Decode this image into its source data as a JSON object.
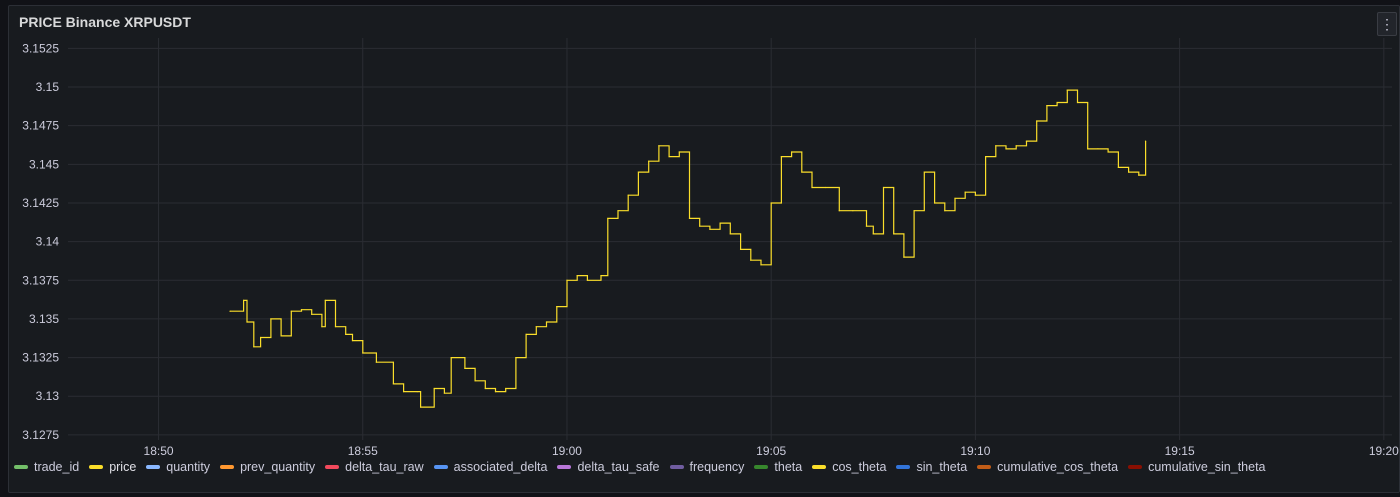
{
  "panel": {
    "title": "PRICE Binance XRPUSDT",
    "menu_icon": "kebab-menu-icon",
    "menu_glyph": "⋮"
  },
  "chart_data": {
    "type": "line",
    "title": "PRICE Binance XRPUSDT",
    "xlabel": "",
    "ylabel": "",
    "y_ticks": [
      "3.1525",
      "3.15",
      "3.1475",
      "3.145",
      "3.1425",
      "3.14",
      "3.1375",
      "3.135",
      "3.1325",
      "3.13",
      "3.1275"
    ],
    "x_ticks": [
      "18:50",
      "18:55",
      "19:00",
      "19:05",
      "19:10",
      "19:15",
      "19:20"
    ],
    "ylim": [
      3.12717,
      3.15317
    ],
    "xlim": [
      "18:47:47",
      "19:20:12"
    ],
    "grid": true,
    "legend_position": "bottom-left",
    "line_color": "#fade2a",
    "series": [
      {
        "name": "price",
        "x": [
          "18:51:45",
          "18:52:05",
          "18:52:10",
          "18:52:20",
          "18:52:30",
          "18:52:45",
          "18:53:00",
          "18:53:15",
          "18:53:30",
          "18:53:45",
          "18:54:00",
          "18:54:05",
          "18:54:20",
          "18:54:35",
          "18:54:45",
          "18:55:00",
          "18:55:20",
          "18:55:45",
          "18:56:00",
          "18:56:20",
          "18:56:25",
          "18:56:45",
          "18:57:00",
          "18:57:10",
          "18:57:30",
          "18:57:45",
          "18:58:00",
          "18:58:15",
          "18:58:30",
          "18:58:45",
          "18:59:00",
          "18:59:15",
          "18:59:30",
          "18:59:45",
          "19:00:00",
          "19:00:15",
          "19:00:30",
          "19:00:50",
          "19:01:00",
          "19:01:15",
          "19:01:30",
          "19:01:45",
          "19:02:00",
          "19:02:15",
          "19:02:30",
          "19:02:45",
          "19:03:00",
          "19:03:15",
          "19:03:30",
          "19:03:45",
          "19:04:00",
          "19:04:15",
          "19:04:30",
          "19:04:45",
          "19:05:00",
          "19:05:15",
          "19:05:30",
          "19:05:45",
          "19:06:00",
          "19:06:20",
          "19:06:40",
          "19:07:00",
          "19:07:20",
          "19:07:30",
          "19:07:45",
          "19:08:00",
          "19:08:15",
          "19:08:30",
          "19:08:45",
          "19:09:00",
          "19:09:15",
          "19:09:30",
          "19:09:45",
          "19:10:00",
          "19:10:15",
          "19:10:30",
          "19:10:45",
          "19:11:00",
          "19:11:15",
          "19:11:30",
          "19:11:45",
          "19:12:00",
          "19:12:15",
          "19:12:30",
          "19:12:45",
          "19:13:00",
          "19:13:15",
          "19:13:30",
          "19:13:45",
          "19:14:00",
          "19:14:10"
        ],
        "values": [
          3.1355,
          3.1362,
          3.1348,
          3.1332,
          3.1338,
          3.135,
          3.1339,
          3.1355,
          3.1356,
          3.1353,
          3.1345,
          3.1362,
          3.1345,
          3.134,
          3.1336,
          3.1328,
          3.1322,
          3.1308,
          3.1303,
          3.1303,
          3.1293,
          3.1305,
          3.1302,
          3.1325,
          3.1318,
          3.131,
          3.1305,
          3.1303,
          3.1305,
          3.1325,
          3.134,
          3.1345,
          3.1348,
          3.1358,
          3.1375,
          3.1378,
          3.1375,
          3.1378,
          3.1415,
          3.142,
          3.143,
          3.1445,
          3.1452,
          3.1462,
          3.1455,
          3.1458,
          3.1415,
          3.141,
          3.1408,
          3.1412,
          3.1405,
          3.1395,
          3.1388,
          3.1385,
          3.1425,
          3.1455,
          3.1458,
          3.1445,
          3.1435,
          3.1435,
          3.142,
          3.142,
          3.141,
          3.1405,
          3.1435,
          3.1405,
          3.139,
          3.142,
          3.1445,
          3.1425,
          3.142,
          3.1428,
          3.1432,
          3.143,
          3.1455,
          3.1462,
          3.146,
          3.1462,
          3.1465,
          3.1478,
          3.1488,
          3.149,
          3.1498,
          3.149,
          3.146,
          3.146,
          3.1458,
          3.1448,
          3.1445,
          3.1443,
          3.1465
        ]
      }
    ]
  },
  "legend": [
    {
      "label": "trade_id",
      "color": "#73bf69"
    },
    {
      "label": "price",
      "color": "#fade2a",
      "active": true
    },
    {
      "label": "quantity",
      "color": "#8ab8ff"
    },
    {
      "label": "prev_quantity",
      "color": "#ff9830"
    },
    {
      "label": "delta_tau_raw",
      "color": "#f2495c"
    },
    {
      "label": "associated_delta",
      "color": "#5794f2"
    },
    {
      "label": "delta_tau_safe",
      "color": "#b877d9"
    },
    {
      "label": "frequency",
      "color": "#705da0"
    },
    {
      "label": "theta",
      "color": "#37872d"
    },
    {
      "label": "cos_theta",
      "color": "#fade2a"
    },
    {
      "label": "sin_theta",
      "color": "#3274d9"
    },
    {
      "label": "cumulative_cos_theta",
      "color": "#c15c17"
    },
    {
      "label": "cumulative_sin_theta",
      "color": "#890f02"
    }
  ]
}
